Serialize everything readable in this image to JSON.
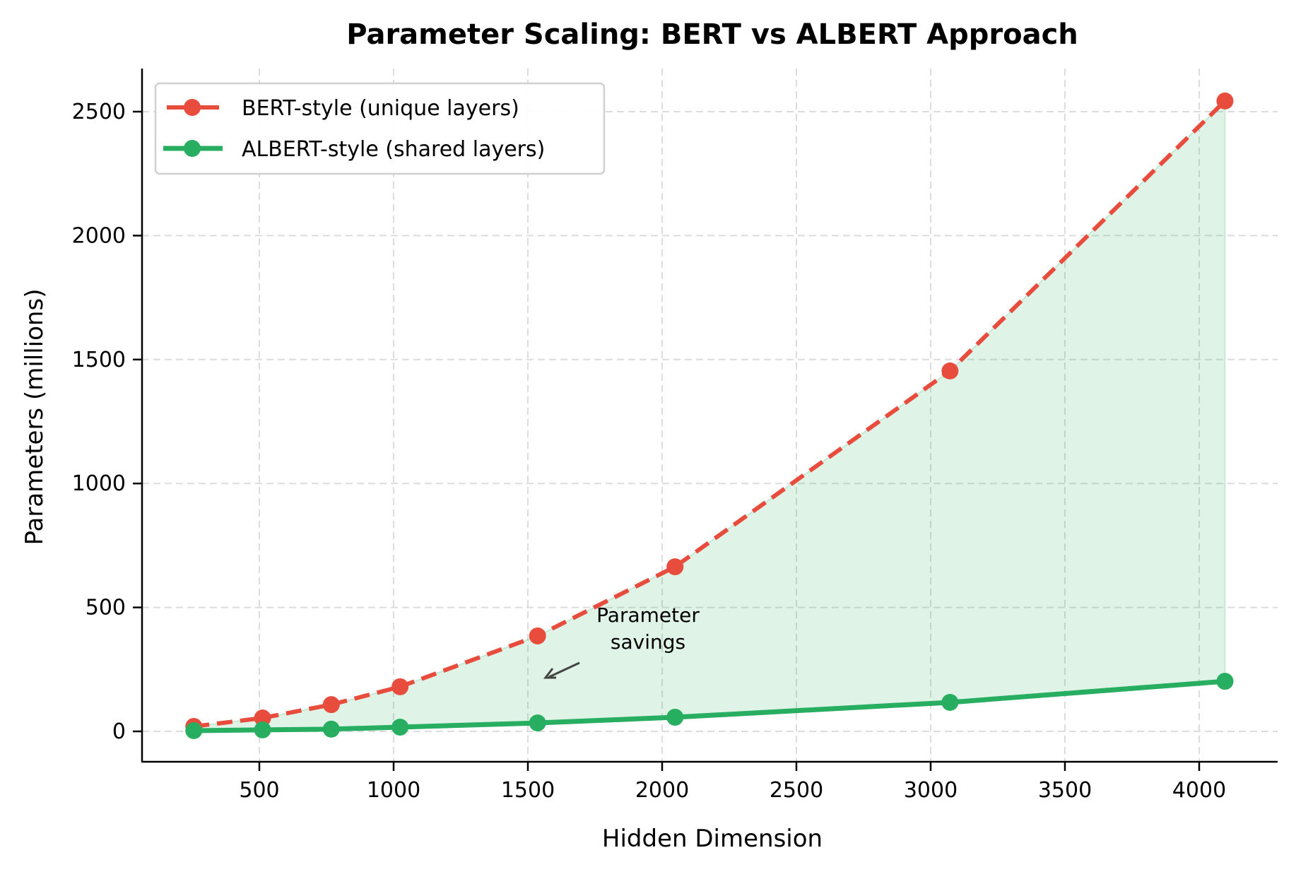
{
  "chart_data": {
    "type": "line",
    "title": "Parameter Scaling: BERT vs ALBERT Approach",
    "xlabel": "Hidden Dimension",
    "ylabel": "Parameters (millions)",
    "x": [
      256,
      512,
      768,
      1024,
      1536,
      2048,
      3072,
      4096
    ],
    "series": [
      {
        "name": "BERT-style (unique layers)",
        "color": "#e74c3c",
        "style": "dashed",
        "marker": "circle",
        "values": [
          20,
          54,
          108,
          180,
          385,
          664,
          1454,
          2543
        ]
      },
      {
        "name": "ALBERT-style (shared layers)",
        "color": "#27ae60",
        "style": "solid",
        "marker": "circle",
        "values": [
          3,
          6,
          9,
          17,
          34,
          57,
          117,
          202
        ]
      }
    ],
    "fill_between": {
      "color": "#27ae60",
      "alpha": 0.15
    },
    "xticks": [
      500,
      1000,
      1500,
      2000,
      2500,
      3000,
      3500,
      4000
    ],
    "yticks": [
      0,
      500,
      1000,
      1500,
      2000,
      2500
    ],
    "xlim": [
      60,
      4300
    ],
    "ylim": [
      -120,
      2680
    ],
    "grid": true,
    "legend_position": "upper left",
    "annotations": [
      {
        "text_line1": "Parameter",
        "text_line2": "savings",
        "arrow": true
      }
    ]
  }
}
